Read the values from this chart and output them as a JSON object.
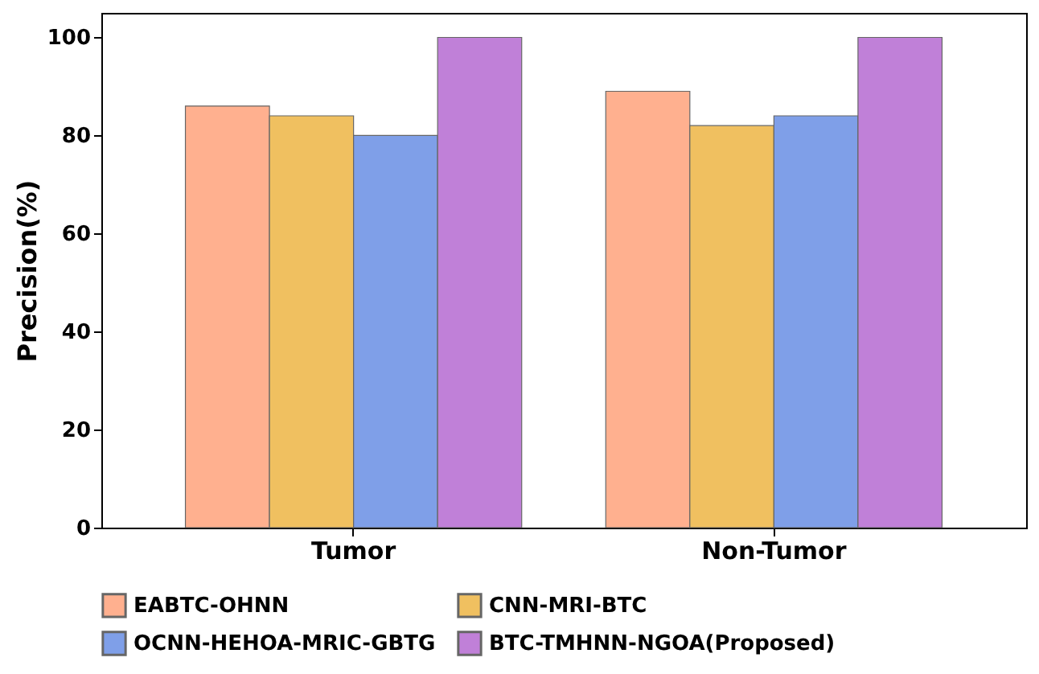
{
  "chart_data": {
    "type": "bar",
    "ylabel": "Precision(%)",
    "categories": [
      "Tumor",
      "Non-Tumor"
    ],
    "series": [
      {
        "name": "EABTC-OHNN",
        "color": "#ffb08f",
        "values": [
          86,
          89
        ]
      },
      {
        "name": "CNN-MRI-BTC",
        "color": "#f0c060",
        "values": [
          84,
          82
        ]
      },
      {
        "name": "OCNN-HEHOA-MRIC-GBTG",
        "color": "#7f9fe8",
        "values": [
          80,
          84
        ]
      },
      {
        "name": "BTC-TMHNN-NGOA(Proposed)",
        "color": "#c080d8",
        "values": [
          100,
          100
        ]
      }
    ],
    "ylim": [
      0,
      105
    ],
    "yticks": [
      0,
      20,
      40,
      60,
      80,
      100
    ],
    "grid": false,
    "legend": "bottom"
  }
}
